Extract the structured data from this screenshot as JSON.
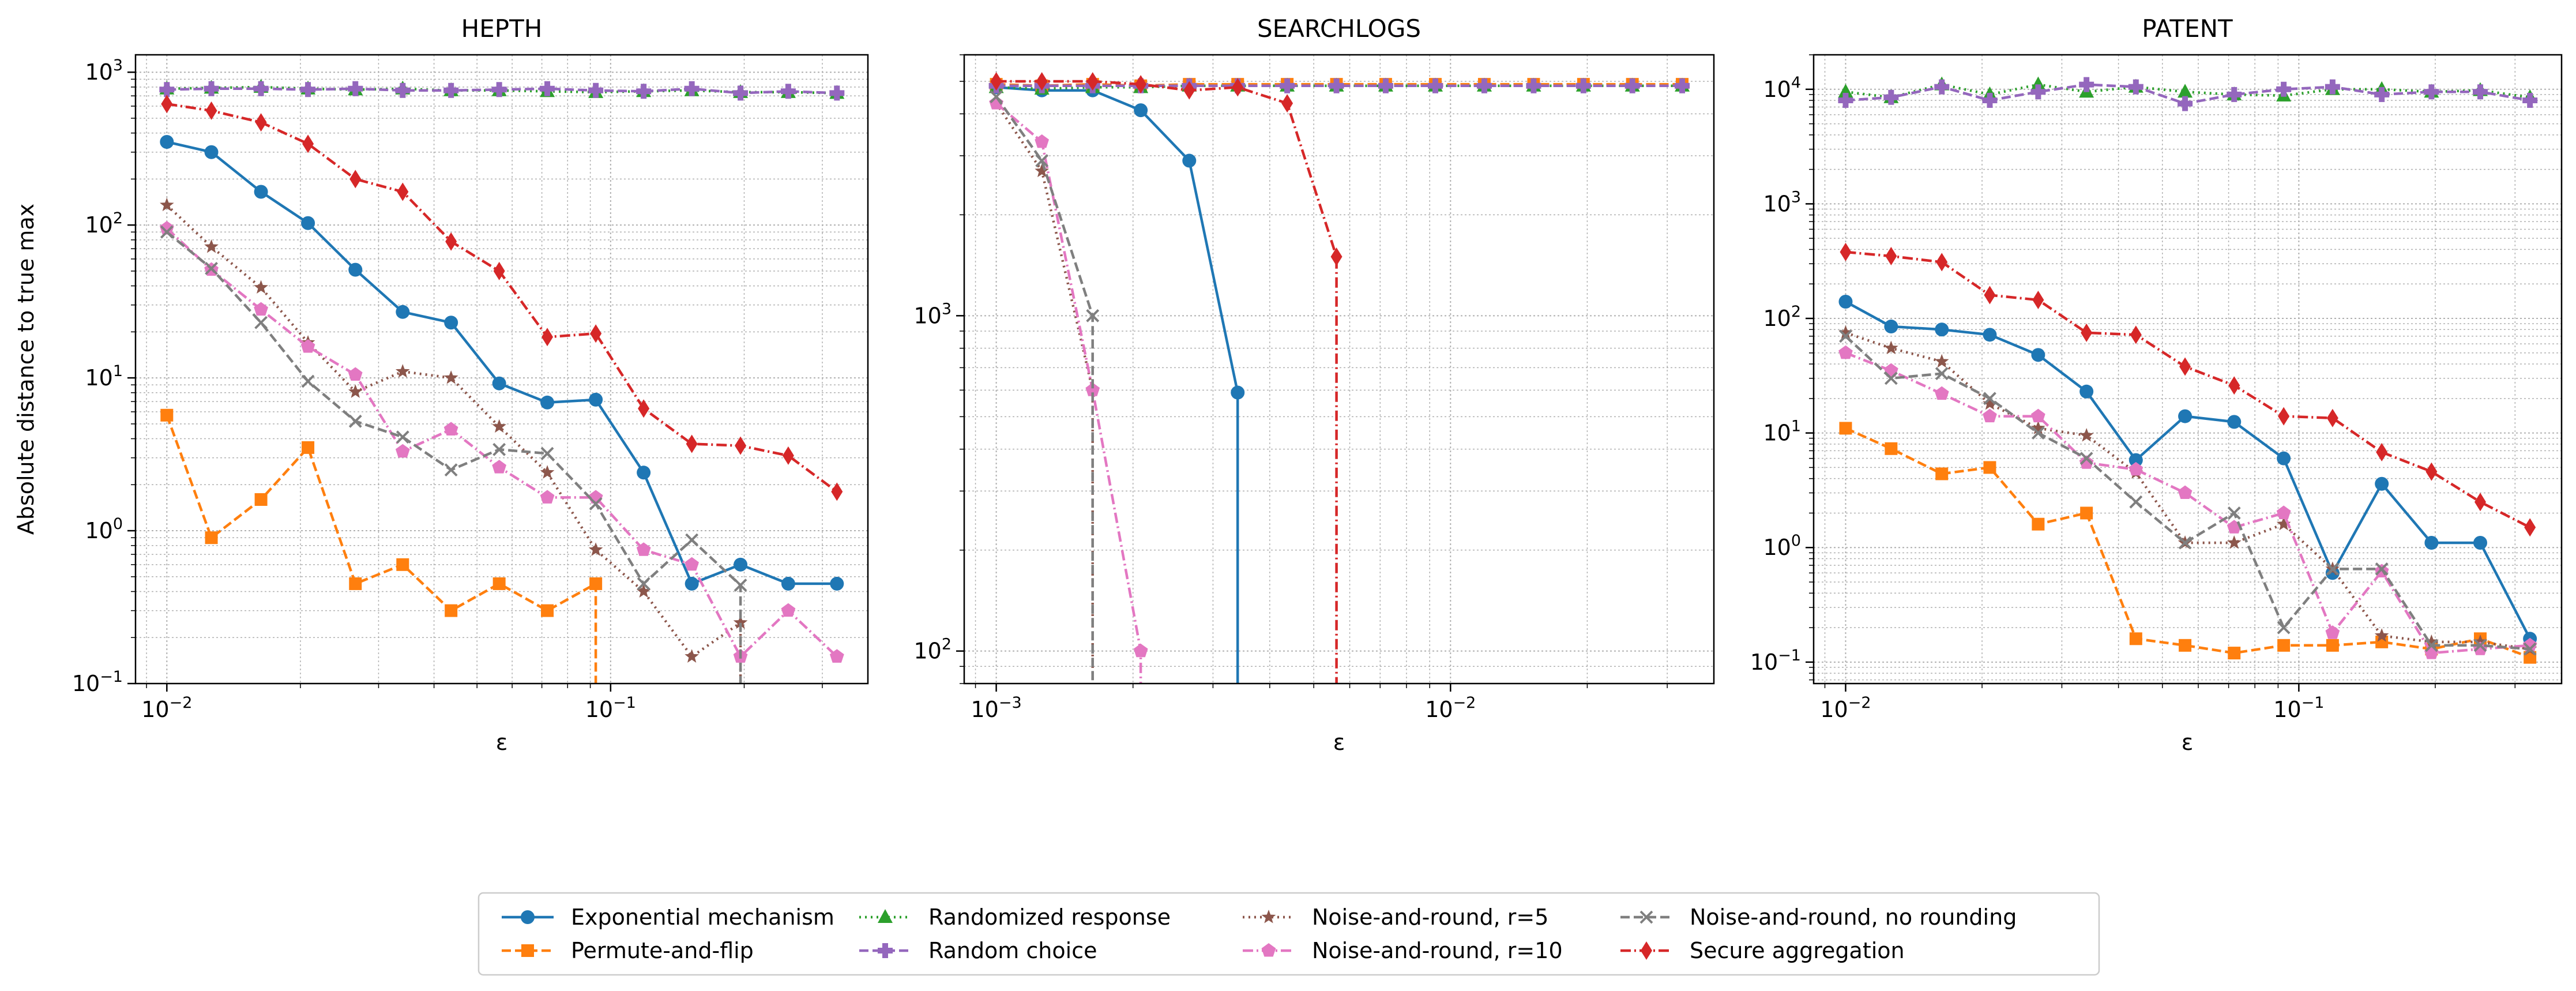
{
  "figure": {
    "ylabel": "Absolute distance to true max",
    "legend_position": "bottom-center"
  },
  "series_styles": [
    {
      "name": "Exponential mechanism",
      "color": "#1f77b4",
      "dash": "solid",
      "marker": "circle"
    },
    {
      "name": "Permute-and-flip",
      "color": "#ff7f0e",
      "dash": "dashed",
      "marker": "square"
    },
    {
      "name": "Randomized response",
      "color": "#2ca02c",
      "dash": "dotted",
      "marker": "triangle"
    },
    {
      "name": "Random choice",
      "color": "#9467bd",
      "dash": "dashed",
      "marker": "plus"
    },
    {
      "name": "Noise-and-round, r=5",
      "color": "#8c564b",
      "dash": "dotted",
      "marker": "star"
    },
    {
      "name": "Noise-and-round, r=10",
      "color": "#e377c2",
      "dash": "dashdot",
      "marker": "pentagon"
    },
    {
      "name": "Noise-and-round, no rounding",
      "color": "#7f7f7f",
      "dash": "dashed",
      "marker": "x"
    },
    {
      "name": "Secure aggregation",
      "color": "#d62728",
      "dash": "dashdot",
      "marker": "diamond"
    }
  ],
  "chart_data": [
    {
      "type": "line",
      "title": "HEPTH",
      "xlabel": "ε",
      "ylabel": "Absolute distance to true max",
      "xscale": "log",
      "yscale": "log",
      "xlim": [
        0.0085,
        0.38
      ],
      "ylim": [
        0.1,
        1300
      ],
      "xticks": [
        {
          "v": 0.01,
          "base": "10",
          "exp": "−2"
        },
        {
          "v": 0.1,
          "base": "10",
          "exp": "−1"
        }
      ],
      "yticks": [
        {
          "v": 0.1,
          "base": "10",
          "exp": "−1"
        },
        {
          "v": 1,
          "base": "10",
          "exp": "0"
        },
        {
          "v": 10,
          "base": "10",
          "exp": "1"
        },
        {
          "v": 100,
          "base": "10",
          "exp": "2"
        },
        {
          "v": 1000,
          "base": "10",
          "exp": "3"
        }
      ],
      "grid": true,
      "x": [
        0.01,
        0.0126,
        0.0163,
        0.0208,
        0.0266,
        0.034,
        0.0437,
        0.0561,
        0.072,
        0.0926,
        0.1187,
        0.1524,
        0.1962,
        0.2514,
        0.3236
      ],
      "series": [
        {
          "name": "Exponential mechanism",
          "values": [
            350,
            300,
            165,
            103,
            51,
            27,
            23,
            9.2,
            6.9,
            7.2,
            2.4,
            0.45,
            0.6,
            0.45,
            0.45
          ]
        },
        {
          "name": "Permute-and-flip",
          "values": [
            5.7,
            0.9,
            1.6,
            3.5,
            0.45,
            0.6,
            0.3,
            0.45,
            0.3,
            0.45,
            null,
            null,
            null,
            null,
            null
          ],
          "drop_to_bottom_after": 9
        },
        {
          "name": "Randomized response",
          "values": [
            780,
            790,
            800,
            780,
            770,
            780,
            760,
            760,
            750,
            740,
            750,
            760,
            740,
            740,
            730
          ]
        },
        {
          "name": "Random choice",
          "values": [
            770,
            780,
            780,
            770,
            780,
            760,
            760,
            770,
            780,
            760,
            750,
            780,
            730,
            750,
            730
          ]
        },
        {
          "name": "Noise-and-round, r=5",
          "values": [
            135,
            72,
            39,
            17,
            8.1,
            11,
            10,
            4.8,
            2.4,
            0.75,
            0.4,
            0.15,
            0.25,
            null,
            null
          ],
          "drop_to_bottom_after": 12
        },
        {
          "name": "Noise-and-round, r=10",
          "values": [
            95,
            51,
            28,
            16,
            10.5,
            3.3,
            4.6,
            2.6,
            1.65,
            1.65,
            0.75,
            0.6,
            0.15,
            0.3,
            0.15
          ]
        },
        {
          "name": "Noise-and-round, no rounding",
          "values": [
            90,
            52,
            23,
            9.5,
            5.2,
            4.1,
            2.5,
            3.4,
            3.2,
            1.5,
            0.45,
            0.87,
            0.44,
            null,
            null
          ],
          "drop_to_bottom_after": 12
        },
        {
          "name": "Secure aggregation",
          "values": [
            620,
            560,
            470,
            340,
            200,
            165,
            78,
            50,
            18.5,
            19.5,
            6.3,
            3.7,
            3.6,
            3.1,
            1.8
          ]
        }
      ]
    },
    {
      "type": "line",
      "title": "SEARCHLOGS",
      "xlabel": "ε",
      "xscale": "log",
      "yscale": "log",
      "xlim": [
        0.00085,
        0.038
      ],
      "ylim": [
        80,
        6000
      ],
      "xticks": [
        {
          "v": 0.001,
          "base": "10",
          "exp": "−3"
        },
        {
          "v": 0.01,
          "base": "10",
          "exp": "−2"
        }
      ],
      "yticks": [
        {
          "v": 100,
          "base": "10",
          "exp": "2"
        },
        {
          "v": 1000,
          "base": "10",
          "exp": "3"
        }
      ],
      "grid": true,
      "x": [
        0.001,
        0.00126,
        0.00163,
        0.00208,
        0.00266,
        0.0034,
        0.00437,
        0.00561,
        0.0072,
        0.00926,
        0.01187,
        0.01524,
        0.01962,
        0.02514,
        0.03236
      ],
      "series": [
        {
          "name": "Exponential mechanism",
          "values": [
            4800,
            4700,
            4700,
            4100,
            2900,
            590,
            null,
            null,
            null,
            null,
            null,
            null,
            null,
            null,
            null
          ],
          "drop_to_bottom_after": 5
        },
        {
          "name": "Permute-and-flip",
          "values": [
            4900,
            4850,
            4900,
            4850,
            4900,
            4900,
            4900,
            4900,
            4900,
            4900,
            4900,
            4900,
            4900,
            4900,
            4900
          ]
        },
        {
          "name": "Randomized response",
          "values": [
            4800,
            4750,
            4800,
            4800,
            4850,
            4850,
            4850,
            4850,
            4850,
            4850,
            4850,
            4850,
            4850,
            4850,
            4850
          ]
        },
        {
          "name": "Random choice",
          "values": [
            4850,
            4850,
            4850,
            4850,
            4850,
            4850,
            4850,
            4850,
            4850,
            4850,
            4850,
            4850,
            4850,
            4850,
            4850
          ]
        },
        {
          "name": "Noise-and-round, r=5",
          "values": [
            4300,
            2700,
            600,
            null,
            null,
            null,
            null,
            null,
            null,
            null,
            null,
            null,
            null,
            null,
            null
          ],
          "drop_to_bottom_after": 2
        },
        {
          "name": "Noise-and-round, r=10",
          "values": [
            4300,
            3300,
            600,
            100,
            null,
            null,
            null,
            null,
            null,
            null,
            null,
            null,
            null,
            null,
            null
          ],
          "drop_to_bottom_after": 3
        },
        {
          "name": "Noise-and-round, no rounding",
          "values": [
            4500,
            2900,
            1000,
            null,
            null,
            null,
            null,
            null,
            null,
            null,
            null,
            null,
            null,
            null,
            null
          ],
          "drop_to_bottom_after": 2
        },
        {
          "name": "Secure aggregation",
          "values": [
            5000,
            5000,
            5000,
            4900,
            4700,
            4800,
            4300,
            1500,
            null,
            null,
            null,
            null,
            null,
            null,
            null
          ],
          "drop_to_bottom_after": 7
        }
      ]
    },
    {
      "type": "line",
      "title": "PATENT",
      "xlabel": "ε",
      "xscale": "log",
      "yscale": "log",
      "xlim": [
        0.0085,
        0.38
      ],
      "ylim": [
        0.065,
        20000
      ],
      "xticks": [
        {
          "v": 0.01,
          "base": "10",
          "exp": "−2"
        },
        {
          "v": 0.1,
          "base": "10",
          "exp": "−1"
        }
      ],
      "yticks": [
        {
          "v": 0.1,
          "base": "10",
          "exp": "−1"
        },
        {
          "v": 1,
          "base": "10",
          "exp": "0"
        },
        {
          "v": 10,
          "base": "10",
          "exp": "1"
        },
        {
          "v": 100,
          "base": "10",
          "exp": "2"
        },
        {
          "v": 1000,
          "base": "10",
          "exp": "3"
        },
        {
          "v": 10000,
          "base": "10",
          "exp": "4"
        }
      ],
      "grid": true,
      "x": [
        0.01,
        0.0126,
        0.0163,
        0.0208,
        0.0266,
        0.034,
        0.0437,
        0.0561,
        0.072,
        0.0926,
        0.1187,
        0.1524,
        0.1962,
        0.2514,
        0.3236
      ],
      "series": [
        {
          "name": "Exponential mechanism",
          "values": [
            140,
            85,
            80,
            72,
            48,
            23,
            5.8,
            14,
            12.5,
            6,
            0.6,
            3.6,
            1.1,
            1.1,
            0.16
          ]
        },
        {
          "name": "Permute-and-flip",
          "values": [
            11,
            7.3,
            4.4,
            5,
            1.6,
            2,
            0.16,
            0.14,
            0.12,
            0.14,
            0.14,
            0.15,
            0.13,
            0.16,
            0.11
          ]
        },
        {
          "name": "Randomized response",
          "values": [
            9500,
            8500,
            11000,
            9000,
            11000,
            9500,
            10500,
            9500,
            9000,
            8800,
            10000,
            10000,
            9500,
            9800,
            8500
          ]
        },
        {
          "name": "Random choice",
          "values": [
            8000,
            8500,
            10500,
            8000,
            9500,
            11000,
            10500,
            7500,
            9000,
            10000,
            10500,
            9000,
            9500,
            9500,
            8000
          ]
        },
        {
          "name": "Noise-and-round, r=5",
          "values": [
            75,
            55,
            42,
            18,
            11,
            9.5,
            4.5,
            1.1,
            1.1,
            1.6,
            0.65,
            0.17,
            0.15,
            0.15,
            0.13
          ]
        },
        {
          "name": "Noise-and-round, r=10",
          "values": [
            50,
            35,
            22,
            14,
            14,
            5.5,
            4.8,
            3,
            1.5,
            2,
            0.18,
            0.62,
            0.12,
            0.13,
            0.14
          ]
        },
        {
          "name": "Noise-and-round, no rounding",
          "values": [
            70,
            30,
            33,
            20,
            10,
            6,
            2.5,
            1.1,
            2,
            0.2,
            0.65,
            0.65,
            0.14,
            0.14,
            0.13
          ]
        },
        {
          "name": "Secure aggregation",
          "values": [
            380,
            350,
            310,
            160,
            145,
            75,
            72,
            38,
            26,
            14,
            13.5,
            6.8,
            4.6,
            2.5,
            1.5
          ]
        }
      ]
    }
  ]
}
